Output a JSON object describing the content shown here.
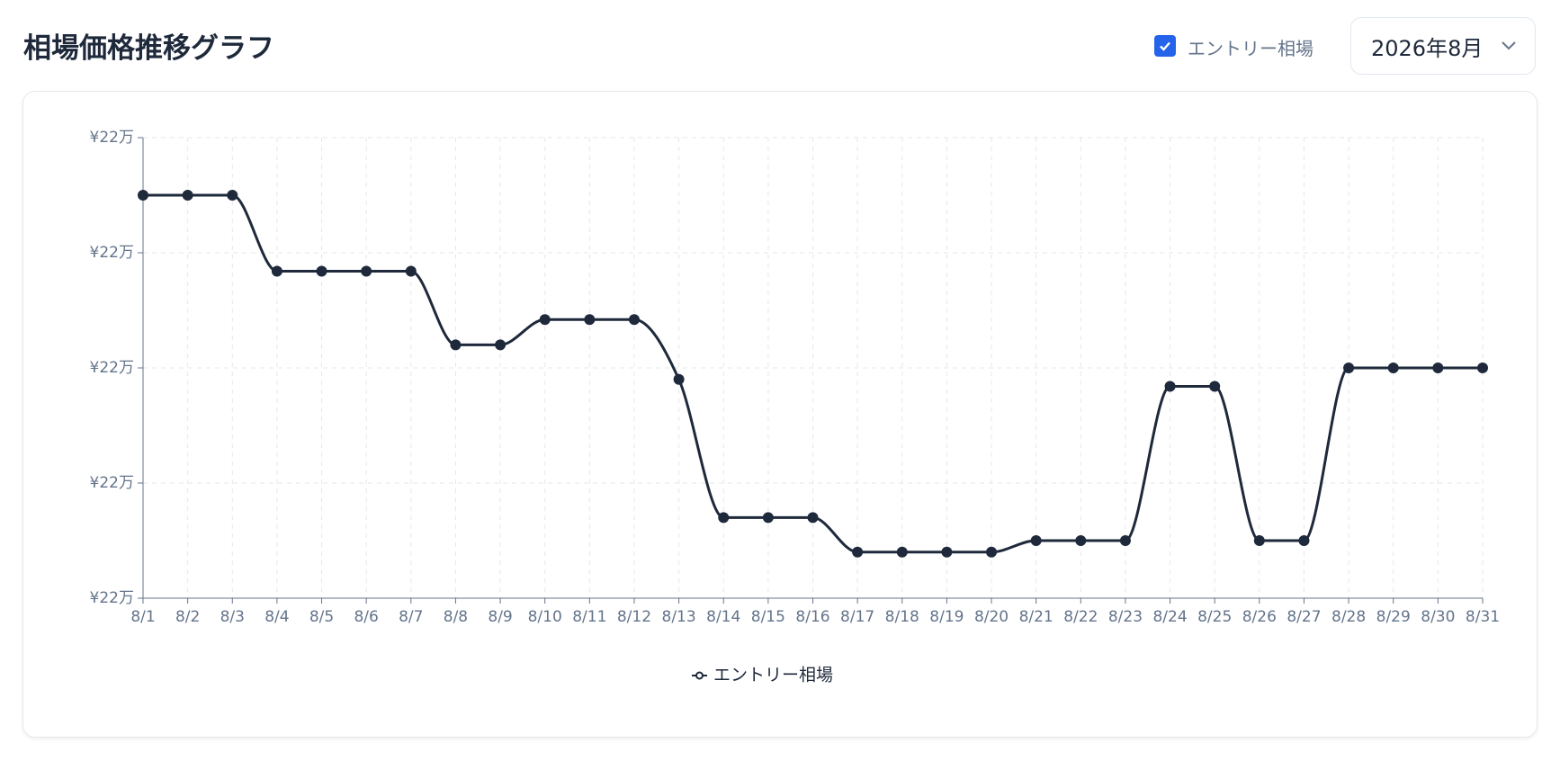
{
  "header": {
    "title": "相場価格推移グラフ"
  },
  "controls": {
    "checkbox_label": "エントリー相場",
    "month_select": "2026年8月"
  },
  "chart_data": {
    "type": "line",
    "categories": [
      "8/1",
      "8/2",
      "8/3",
      "8/4",
      "8/5",
      "8/6",
      "8/7",
      "8/8",
      "8/9",
      "8/10",
      "8/11",
      "8/12",
      "8/13",
      "8/14",
      "8/15",
      "8/16",
      "8/17",
      "8/18",
      "8/19",
      "8/20",
      "8/21",
      "8/22",
      "8/23",
      "8/24",
      "8/25",
      "8/26",
      "8/27",
      "8/28",
      "8/29",
      "8/30",
      "8/31"
    ],
    "series": [
      {
        "name": "エントリー相場",
        "color": "#1e293b",
        "values": [
          221750,
          221750,
          221750,
          221420,
          221420,
          221420,
          221420,
          221100,
          221100,
          221210,
          221210,
          221210,
          220950,
          220350,
          220350,
          220350,
          220200,
          220200,
          220200,
          220200,
          220250,
          220250,
          220250,
          220920,
          220920,
          220250,
          220250,
          221000,
          221000,
          221000,
          221000
        ]
      }
    ],
    "ylim": [
      220000,
      222000
    ],
    "yticks": [
      {
        "value": 220000,
        "label": "¥22万"
      },
      {
        "value": 220500,
        "label": "¥22万"
      },
      {
        "value": 221000,
        "label": "¥22万"
      },
      {
        "value": 221500,
        "label": "¥22万"
      },
      {
        "value": 222000,
        "label": "¥22万"
      }
    ],
    "grid": true
  }
}
